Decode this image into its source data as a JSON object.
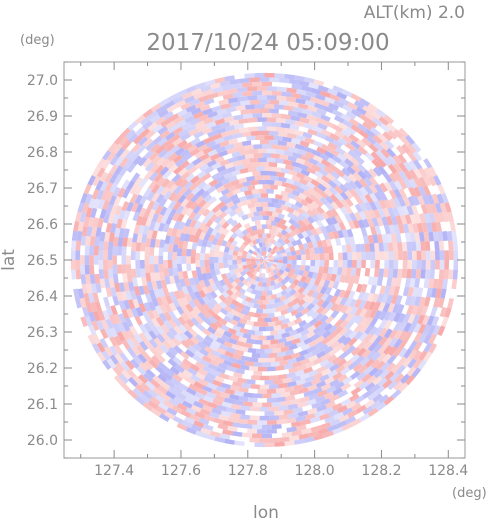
{
  "chart_data": {
    "type": "heatmap",
    "title": "2017/10/24 05:09:00",
    "altitude_label": "ALT(km) 2.0",
    "xlabel": "lon",
    "ylabel": "lat",
    "x_unit": "(deg)",
    "y_unit": "(deg)",
    "xlim": [
      127.25,
      128.45
    ],
    "ylim": [
      25.95,
      27.05
    ],
    "x_ticks": [
      "127.4",
      "127.6",
      "127.8",
      "128.0",
      "128.2",
      "128.4"
    ],
    "y_ticks": [
      "27.0",
      "26.9",
      "26.8",
      "26.7",
      "26.6",
      "26.5",
      "26.4",
      "26.3",
      "26.2",
      "26.1",
      "26.0"
    ],
    "center": {
      "lon": 127.85,
      "lat": 26.5
    },
    "radius_deg_lat": 0.52,
    "radius_deg_lon": 0.58,
    "grid": false,
    "colors": {
      "positive": "#f7a0a0",
      "negative": "#a8a8f5",
      "axis": "#8a8a8a"
    }
  }
}
